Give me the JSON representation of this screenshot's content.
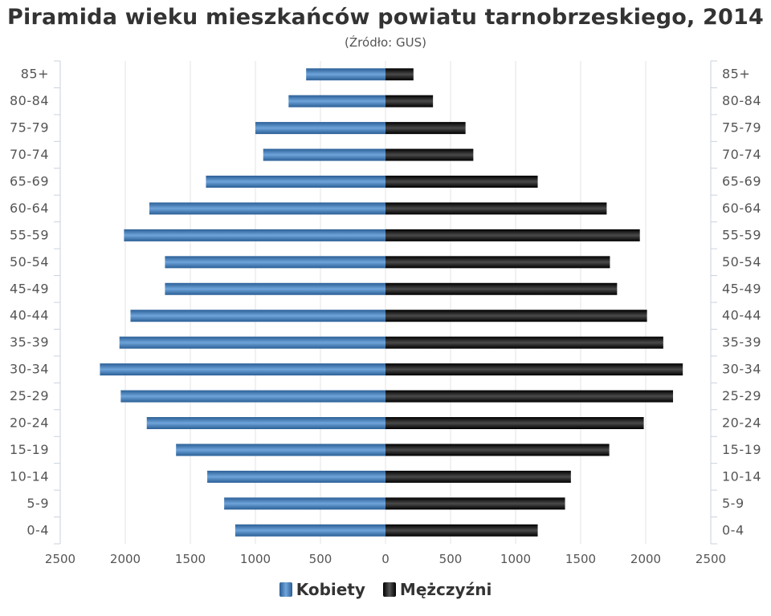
{
  "chart_data": {
    "type": "bar",
    "orientation": "horizontal-pyramid",
    "title": "Piramida wieku mieszkańców powiatu tarnobrzeskiego, 2014",
    "subtitle": "(Źródło: GUS)",
    "categories": [
      "85+",
      "80-84",
      "75-79",
      "70-74",
      "65-69",
      "60-64",
      "55-59",
      "50-54",
      "45-49",
      "40-44",
      "35-39",
      "30-34",
      "25-29",
      "20-24",
      "15-19",
      "10-14",
      "5-9",
      "0-4"
    ],
    "series": [
      {
        "name": "Kobiety",
        "color": "#3a78b8",
        "values": [
          610,
          745,
          1000,
          940,
          1380,
          1815,
          2010,
          1695,
          1695,
          1960,
          2045,
          2195,
          2035,
          1835,
          1610,
          1370,
          1240,
          1155
        ]
      },
      {
        "name": "Mężczyźni",
        "color": "#111111",
        "values": [
          215,
          365,
          615,
          675,
          1170,
          1700,
          1955,
          1725,
          1780,
          2010,
          2135,
          2285,
          2210,
          1985,
          1720,
          1425,
          1380,
          1170
        ]
      }
    ],
    "xlim": [
      -2500,
      2500
    ],
    "xticks": [
      -2500,
      -2000,
      -1500,
      -1000,
      -500,
      0,
      500,
      1000,
      1500,
      2000,
      2500
    ],
    "xtick_labels": [
      "2500",
      "2000",
      "1500",
      "1000",
      "500",
      "0",
      "500",
      "1000",
      "1500",
      "2000",
      "2500"
    ],
    "grid": true,
    "legend_position": "bottom-center"
  }
}
